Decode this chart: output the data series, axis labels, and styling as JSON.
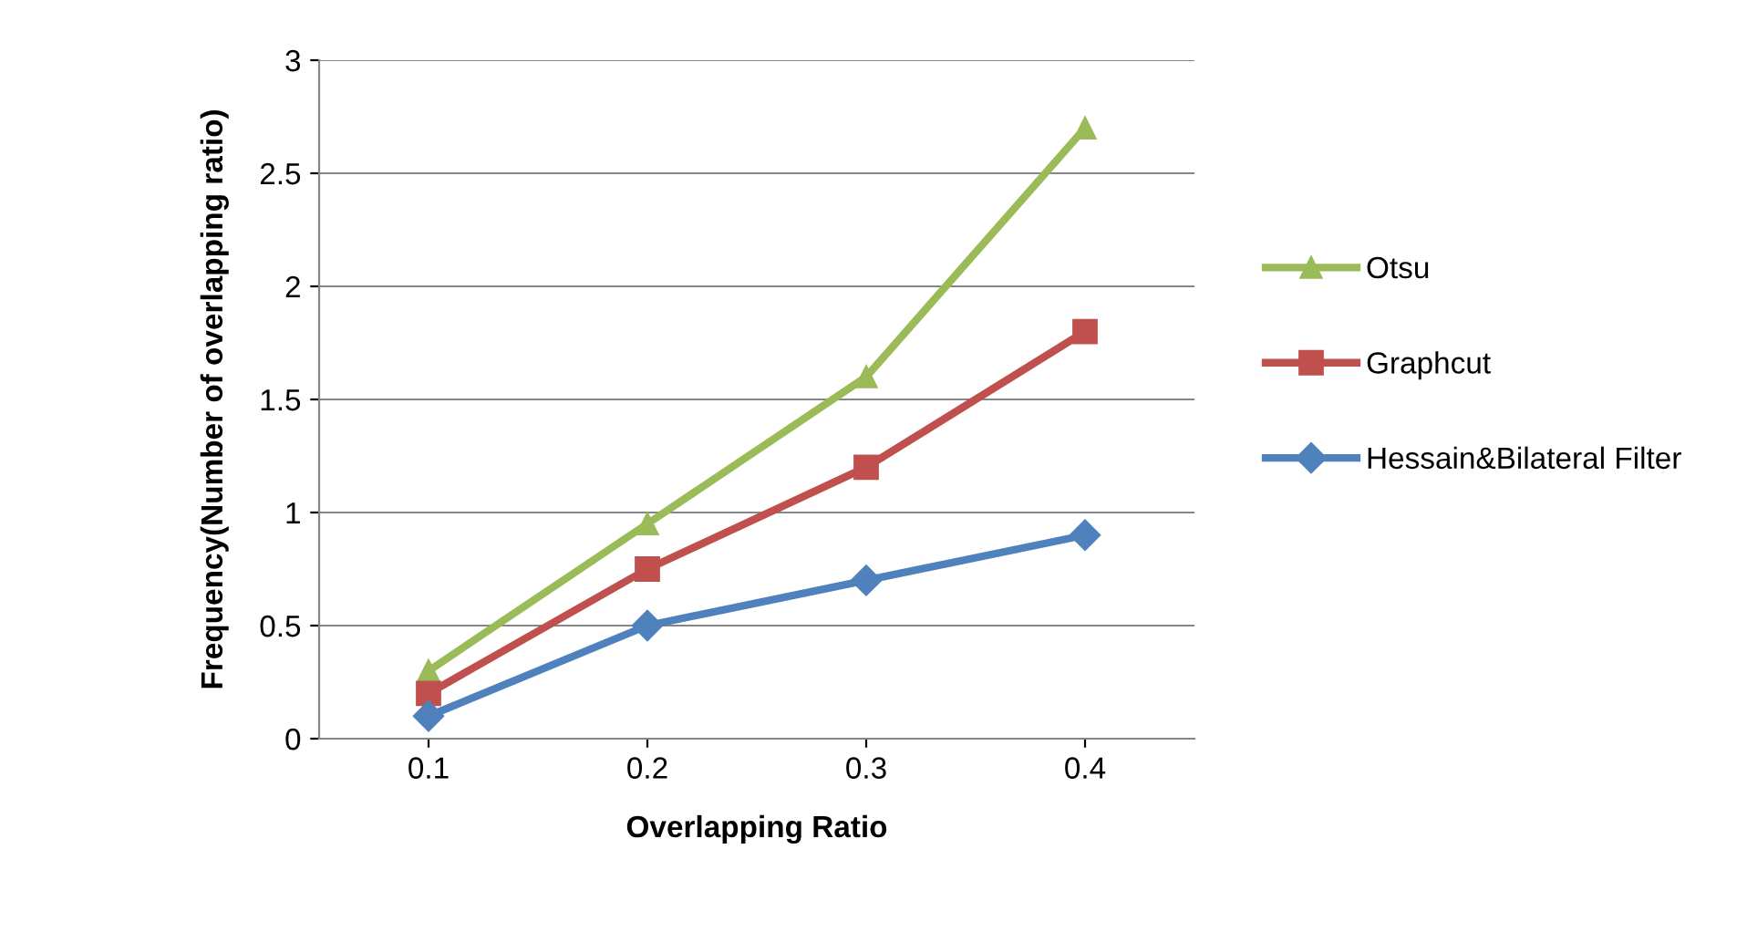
{
  "chart_data": {
    "type": "line",
    "xlabel": "Overlapping Ratio",
    "ylabel": "Frequency(Number of overlapping ratio)",
    "categories": [
      "0.1",
      "0.2",
      "0.3",
      "0.4"
    ],
    "series": [
      {
        "name": "Otsu",
        "color": "#9bbb59",
        "marker": "triangle",
        "values": [
          0.3,
          0.95,
          1.6,
          2.7
        ]
      },
      {
        "name": "Graphcut",
        "color": "#c0504d",
        "marker": "square",
        "values": [
          0.2,
          0.75,
          1.2,
          1.8
        ]
      },
      {
        "name": "Hessain&Bilateral Filter",
        "color": "#4f81bd",
        "marker": "diamond",
        "values": [
          0.1,
          0.5,
          0.7,
          0.9
        ]
      }
    ],
    "ylim": [
      0,
      3
    ],
    "yticks": [
      0,
      0.5,
      1,
      1.5,
      2,
      2.5,
      3
    ],
    "grid": "y",
    "legend": "right",
    "line_style": "solid"
  }
}
